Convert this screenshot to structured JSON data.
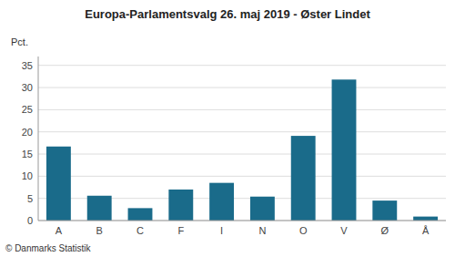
{
  "chart_data": {
    "type": "bar",
    "title": "Europa-Parlamentsvalg 26. maj 2019 - Øster Lindet",
    "ylabel": "Pct.",
    "categories": [
      "A",
      "B",
      "C",
      "F",
      "I",
      "N",
      "O",
      "V",
      "Ø",
      "Å"
    ],
    "values": [
      16.7,
      5.6,
      2.8,
      7.0,
      8.5,
      5.4,
      19.1,
      31.8,
      4.5,
      0.9
    ],
    "color": "#1a6b8a",
    "ylim": [
      0,
      37
    ],
    "yticks": [
      0,
      5,
      10,
      15,
      20,
      25,
      30,
      35
    ],
    "grid": true,
    "annotations": [
      "© Danmarks Statistik"
    ]
  }
}
